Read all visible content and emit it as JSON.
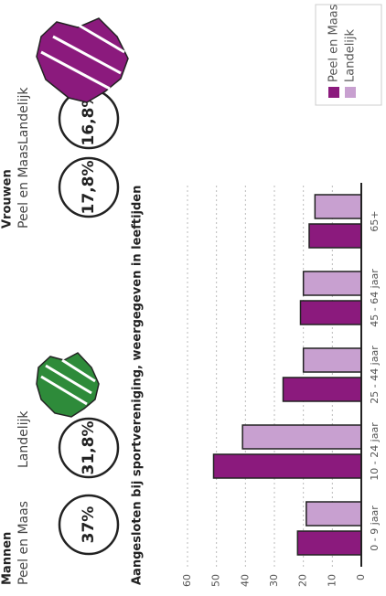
{
  "mannen": {
    "title": "Mannen",
    "local_label": "Peel en Maas",
    "local_value": "37%",
    "national_label": "Landelijk",
    "national_value": "31,8%"
  },
  "vrouwen": {
    "title": "Vrouwen",
    "local_label": "Peel en Maas",
    "local_value": "17,8%",
    "national_label": "Landelijk",
    "national_value": "16,8%"
  },
  "chart_data": {
    "type": "bar",
    "title": "Aangesloten bij sportvereniging, weergegeven in leeftijden",
    "categories": [
      "0 - 9 jaar",
      "10 - 24 jaar",
      "25 - 44 jaar",
      "45 - 64 jaar",
      "65+"
    ],
    "series": [
      {
        "name": "Peel en Maas",
        "color": "#8b1a7d",
        "values": [
          22,
          51,
          27,
          21,
          18
        ]
      },
      {
        "name": "Landelijk",
        "color": "#c8a0d0",
        "values": [
          19,
          41,
          20,
          20,
          16
        ]
      }
    ],
    "ylim": [
      0,
      60
    ],
    "yticks": [
      0,
      10,
      20,
      30,
      40,
      50,
      60
    ],
    "grid": true,
    "legend": "upper-right"
  }
}
